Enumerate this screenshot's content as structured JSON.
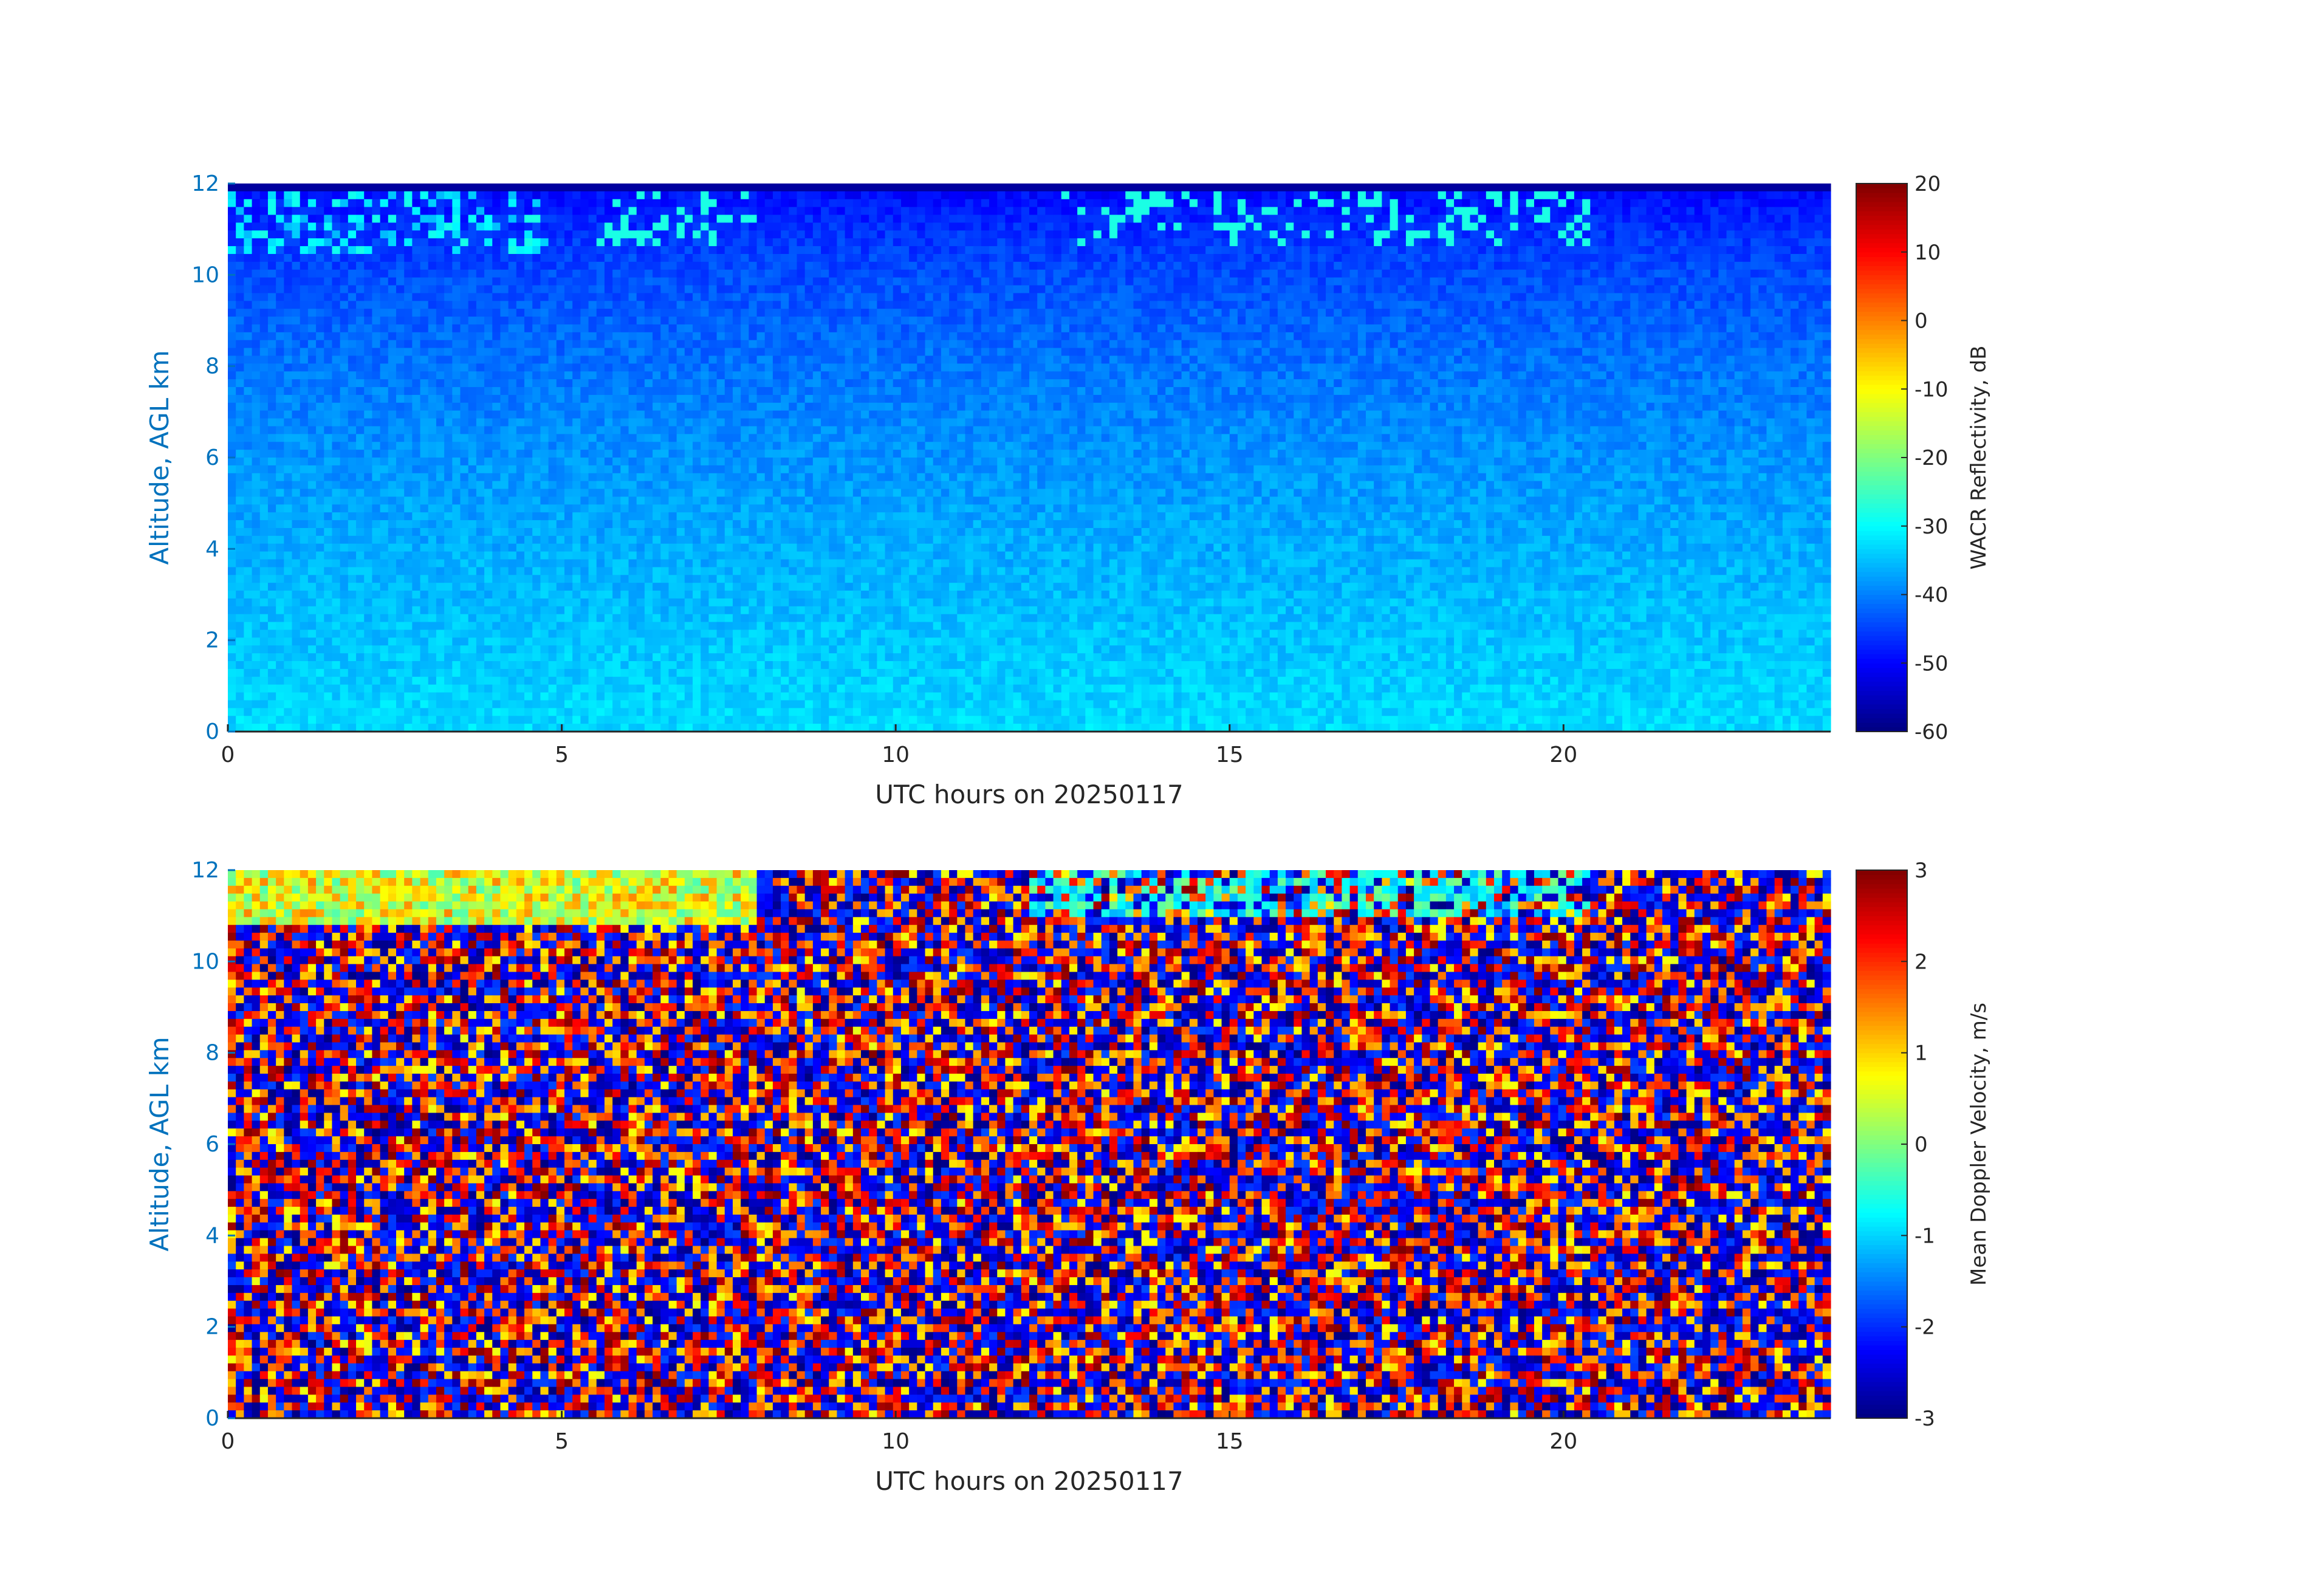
{
  "chart_data": [
    {
      "type": "heatmap",
      "xlabel": "UTC hours on 20250117",
      "ylabel": "Altitude, AGL km",
      "xlim": [
        0,
        24
      ],
      "xticks": [
        0,
        5,
        10,
        15,
        20
      ],
      "ylim": [
        0,
        12
      ],
      "yticks": [
        0,
        2,
        4,
        6,
        8,
        10,
        12
      ],
      "colormap": "jet",
      "colorbar_label": "WACR Reflectivity, dB",
      "clim": [
        -60,
        20
      ],
      "cticks": [
        -60,
        -50,
        -40,
        -30,
        -20,
        -10,
        0,
        10,
        20
      ]
    },
    {
      "type": "heatmap",
      "xlabel": "UTC hours on 20250117",
      "ylabel": "Altitude, AGL km",
      "xlim": [
        0,
        24
      ],
      "xticks": [
        0,
        5,
        10,
        15,
        20
      ],
      "ylim": [
        0,
        12
      ],
      "yticks": [
        0,
        2,
        4,
        6,
        8,
        10,
        12
      ],
      "colormap": "jet",
      "colorbar_label": "Mean Doppler Velocity, m/s",
      "clim": [
        -3,
        3
      ],
      "cticks": [
        -3,
        -2,
        -1,
        0,
        1,
        2,
        3
      ]
    }
  ]
}
